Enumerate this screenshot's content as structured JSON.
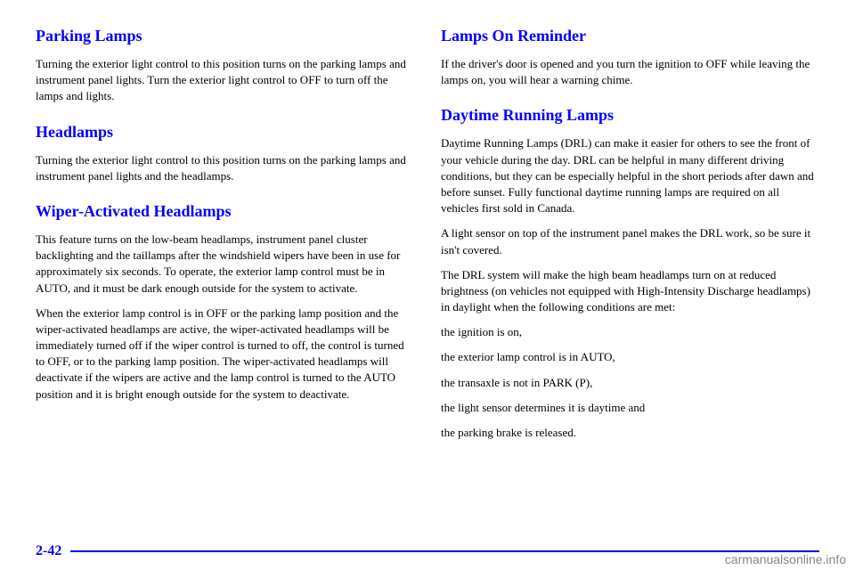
{
  "leftColumn": {
    "section1": {
      "heading": "Parking Lamps",
      "body": "Turning the exterior light control to this position turns on the parking lamps and instrument panel lights. Turn the exterior light control to OFF to turn off the lamps and lights."
    },
    "section2": {
      "heading": "Headlamps",
      "body": "Turning the exterior light control to this position turns on the parking lamps and instrument panel lights and the headlamps."
    },
    "section3": {
      "heading": "Wiper-Activated Headlamps",
      "body1": "This feature turns on the low-beam headlamps, instrument panel cluster backlighting and the taillamps after the windshield wipers have been in use for approximately six seconds. To operate, the exterior lamp control must be in AUTO, and it must be dark enough outside for the system to activate.",
      "body2": "When the exterior lamp control is in OFF or the parking lamp position and the wiper-activated headlamps are active, the wiper-activated headlamps will be immediately turned off if the wiper control is turned to off, the control is turned to OFF, or to the parking lamp position. The wiper-activated headlamps will deactivate if the wipers are active and the lamp control is turned to the AUTO position and it is bright enough outside for the system to deactivate."
    }
  },
  "rightColumn": {
    "section1": {
      "heading": "Lamps On Reminder",
      "body": "If the driver's door is opened and you turn the ignition to OFF while leaving the lamps on, you will hear a warning chime."
    },
    "section2": {
      "heading": "Daytime Running Lamps",
      "body1": "Daytime Running Lamps (DRL) can make it easier for others to see the front of your vehicle during the day. DRL can be helpful in many different driving conditions, but they can be especially helpful in the short periods after dawn and before sunset. Fully functional daytime running lamps are required on all vehicles first sold in Canada.",
      "body2": "A light sensor on top of the instrument panel makes the DRL work, so be sure it isn't covered.",
      "body3": "The DRL system will make the high beam headlamps turn on at reduced brightness (on vehicles not equipped with High-Intensity Discharge headlamps) in daylight when the following conditions are met:",
      "bullet1": "the ignition is on,",
      "bullet2": "the exterior lamp control is in AUTO,",
      "bullet3": "the transaxle is not in PARK (P),",
      "bullet4": "the light sensor determines it is daytime and",
      "bullet5": "the parking brake is released."
    }
  },
  "pageNumber": "2-42",
  "watermark": "carmanualsonline.info",
  "colors": {
    "headingColor": "#0000ff",
    "bodyColor": "#000000",
    "footerColor": "#0000ff",
    "watermarkColor": "#888888",
    "background": "#ffffff"
  },
  "typography": {
    "headingFontSize": 18,
    "bodyFontSize": 13,
    "pageNumberFontSize": 16,
    "fontFamily": "Times New Roman"
  }
}
